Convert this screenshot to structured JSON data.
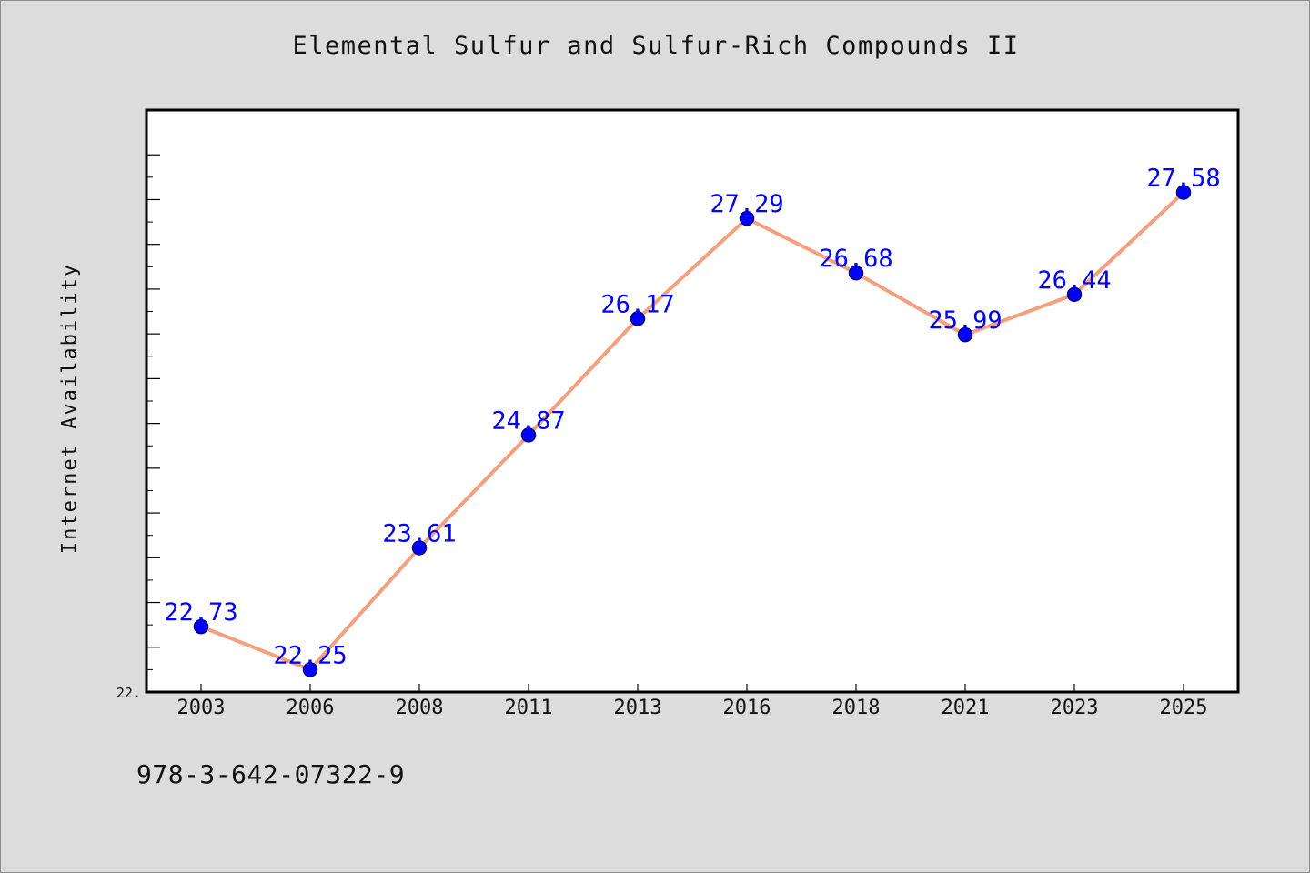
{
  "page": {
    "title": "Elemental Sulfur and Sulfur-Rich Compounds II",
    "identifier": "978-3-642-07322-9"
  },
  "chart_data": {
    "type": "line",
    "title": "Elemental Sulfur and Sulfur-Rich Compounds II",
    "xlabel": "",
    "ylabel": "Internet Availability",
    "categories": [
      "2003",
      "2006",
      "2008",
      "2011",
      "2013",
      "2016",
      "2018",
      "2021",
      "2023",
      "2025"
    ],
    "series": [
      {
        "values": [
          22.73,
          22.25,
          23.61,
          24.87,
          26.17,
          27.29,
          26.68,
          25.99,
          26.44,
          27.58
        ]
      }
    ],
    "data_labels": [
      "22.73",
      "22.25",
      "23.61",
      "24.87",
      "26.17",
      "27.29",
      "26.68",
      "25.99",
      "26.44",
      "27.58"
    ],
    "ylim": [
      22.0,
      28.5
    ],
    "y_tick_labels": [
      "22."
    ],
    "grid": false,
    "legend": "none",
    "colors": {
      "line": "#f4a07f",
      "marker": "#0000ff",
      "marker_edge": "#00008b",
      "data_label": "#0000ff",
      "plot_background": "#ffffff",
      "page_background": "#dcdcdc"
    }
  }
}
